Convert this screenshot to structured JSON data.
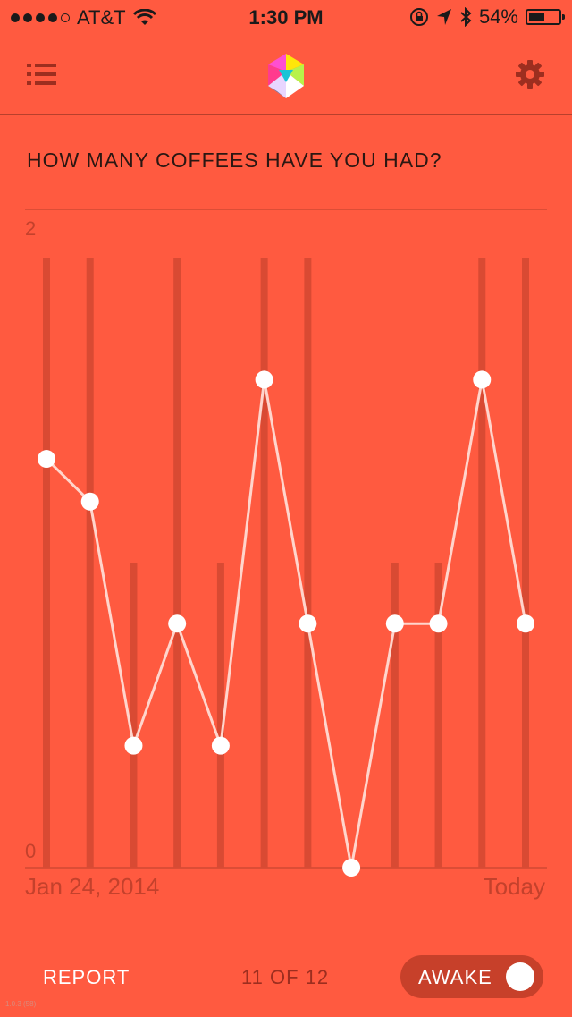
{
  "status_bar": {
    "carrier": "AT&T",
    "time": "1:30 PM",
    "battery": "54%",
    "battery_level": 0.54,
    "signal_bars": 4
  },
  "nav": {
    "menu_icon": "list-icon",
    "logo_icon": "hexagon-logo-icon",
    "settings_icon": "gear-icon"
  },
  "question": "HOW MANY COFFEES HAVE YOU HAD?",
  "chart_data": {
    "type": "bar",
    "ylim": [
      0,
      2
    ],
    "y_tick_labels": [
      "2",
      "0"
    ],
    "x_start_label": "Jan 24, 2014",
    "x_end_label": "Today",
    "bars": [
      2,
      2,
      1,
      2,
      1,
      2,
      2,
      0,
      1,
      1,
      2,
      2
    ],
    "line_values": [
      0.67,
      0.6,
      0.2,
      0.4,
      0.2,
      0.8,
      0.4,
      0,
      0.4,
      0.4,
      0.8,
      0.4
    ]
  },
  "footer": {
    "report_label": "REPORT",
    "counter": "11 OF 12",
    "toggle_label": "AWAKE",
    "toggle_on": true
  },
  "version": "1.0.3 (58)"
}
